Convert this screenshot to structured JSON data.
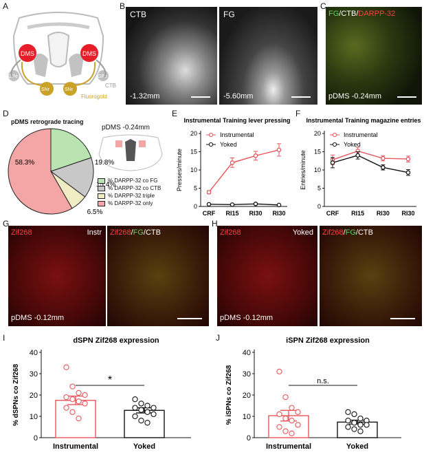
{
  "panels": {
    "A": {
      "letter": "A",
      "labels": {
        "dms_left": "DMS",
        "dms_right": "DMS",
        "gpe_left": "GPe",
        "gpe_right": "GPe",
        "snr_left": "SNr",
        "snr_right": "SNr",
        "ctb": "CTB",
        "fluorogold": "Fluorogold"
      }
    },
    "B": {
      "letter": "B",
      "ctb_title": "CTB",
      "fg_title": "FG",
      "ctb_depth": "-1.32mm",
      "fg_depth": "-5.60mm"
    },
    "C": {
      "letter": "C",
      "t_fg": "FG",
      "t_sep1": "/",
      "t_ctb": "CTB",
      "t_sep2": "/",
      "t_darpp": "DARPP-32",
      "depth": "pDMS -0.24mm"
    },
    "D": {
      "letter": "D",
      "title": "pDMS retrograde tracing",
      "section": "pDMS -0.24mm",
      "legend": [
        "% DARPP-32 co FG",
        "% DARPP-32 co CTB",
        "% DARPP-32 triple",
        "% DARPP-32 only"
      ]
    },
    "E": {
      "letter": "E"
    },
    "F": {
      "letter": "F"
    },
    "G": {
      "letter": "G",
      "left_title": "Zif268",
      "left_tag": "Instr",
      "r_zif": "Zif268",
      "r_s1": "/",
      "r_fg": "FG",
      "r_s2": "/",
      "r_ctb": "CTB",
      "depth": "pDMS -0.12mm"
    },
    "H": {
      "letter": "H",
      "left_title": "Zif268",
      "left_tag": "Yoked",
      "r_zif": "Zif268",
      "r_s1": "/",
      "r_fg": "FG",
      "r_s2": "/",
      "r_ctb": "CTB",
      "depth": "pDMS -0.12mm"
    },
    "I": {
      "letter": "I"
    },
    "J": {
      "letter": "J"
    }
  },
  "colors": {
    "instrumental": "#e8555a",
    "yoked": "#111111",
    "pie_fg": "#b9e3b0",
    "pie_ctb": "#c8c8c8",
    "pie_triple": "#f0ecc4",
    "pie_only": "#f4a5a5",
    "fluorogold": "#c9a227",
    "dms": "#e61e2a"
  },
  "chart_data": [
    {
      "id": "D",
      "type": "pie",
      "title": "pDMS retrograde tracing",
      "slices": [
        {
          "name": "% DARPP-32 co FG",
          "value": 19.8,
          "label": "19.8%"
        },
        {
          "name": "% DARPP-32 co CTB",
          "value": 15.4,
          "label": "15.4%"
        },
        {
          "name": "% DARPP-32 triple",
          "value": 6.5,
          "label": "6.5%"
        },
        {
          "name": "% DARPP-32 only",
          "value": 58.3,
          "label": "58.3%"
        }
      ]
    },
    {
      "id": "E",
      "type": "line",
      "title": "Instrumental Training lever pressing",
      "ylabel": "Presses/minute",
      "categories": [
        "CRF",
        "RI15",
        "RI30",
        "RI30"
      ],
      "ylim": [
        0,
        20
      ],
      "yticks": [
        0,
        5,
        10,
        15,
        20
      ],
      "legend": [
        "Instrumental",
        "Yoked"
      ],
      "series": [
        {
          "name": "Instrumental",
          "values": [
            3.9,
            12.0,
            13.9,
            15.5
          ],
          "err": [
            0.4,
            1.3,
            1.2,
            1.7
          ]
        },
        {
          "name": "Yoked",
          "values": [
            0.6,
            0.5,
            0.7,
            0.4
          ],
          "err": [
            0.1,
            0.1,
            0.15,
            0.1
          ]
        }
      ]
    },
    {
      "id": "F",
      "type": "line",
      "title": "Instrumental Training magazine entries",
      "ylabel": "Entries/minute",
      "categories": [
        "CRF",
        "RI15",
        "RI30",
        "RI30"
      ],
      "ylim": [
        0,
        20
      ],
      "yticks": [
        0,
        5,
        10,
        15,
        20
      ],
      "legend": [
        "Instrumental",
        "Yoked"
      ],
      "series": [
        {
          "name": "Instrumental",
          "values": [
            12.8,
            15.2,
            13.2,
            13.0
          ],
          "err": [
            1.3,
            1.0,
            0.7,
            0.8
          ]
        },
        {
          "name": "Yoked",
          "values": [
            12.0,
            14.0,
            10.7,
            9.3
          ],
          "err": [
            1.4,
            1.0,
            0.7,
            0.8
          ]
        }
      ]
    },
    {
      "id": "I",
      "type": "bar",
      "title": "dSPN Zif268 expression",
      "ylabel": "% dSPNs co Zif268",
      "categories": [
        "Instrumental",
        "Yoked"
      ],
      "ylim": [
        0,
        40
      ],
      "yticks": [
        0,
        10,
        20,
        30,
        40
      ],
      "means": [
        17.5,
        12.8
      ],
      "sem": [
        2.0,
        1.2
      ],
      "significance": "*",
      "points": [
        [
          33,
          24,
          21,
          20,
          19,
          18,
          17,
          16,
          14,
          12,
          9
        ],
        [
          18,
          16,
          15,
          14,
          14,
          13,
          12,
          11,
          10,
          8,
          7
        ]
      ]
    },
    {
      "id": "J",
      "type": "bar",
      "title": "iSPN Zif268 expression",
      "ylabel": "% iSPNs co Zif268",
      "categories": [
        "Instrumental",
        "Yoked"
      ],
      "ylim": [
        0,
        40
      ],
      "yticks": [
        0,
        10,
        20,
        30,
        40
      ],
      "means": [
        10.3,
        7.3
      ],
      "sem": [
        2.5,
        0.9
      ],
      "significance": "n.s.",
      "points": [
        [
          31,
          19,
          14,
          12,
          11,
          9,
          8,
          6,
          5,
          3,
          2
        ],
        [
          12,
          11,
          9,
          8,
          8,
          7,
          6,
          6,
          5,
          4,
          3
        ]
      ]
    }
  ]
}
